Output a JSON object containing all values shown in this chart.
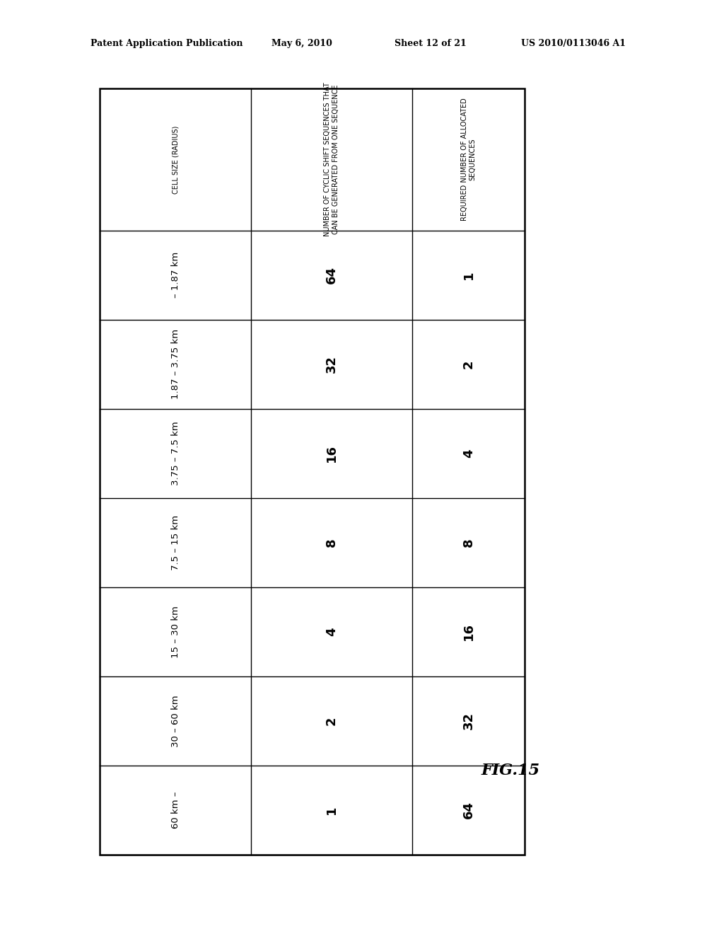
{
  "header_row": [
    "CELL SIZE (RADIUS)",
    "NUMBER OF CYCLIC SHIFT SEQUENCES THAT\nCAN BE GENERATED FROM ONE SEQUENCE",
    "REQUIRED NUMBER OF ALLOCATED\nSEQUENCES"
  ],
  "data_rows": [
    [
      "– 1.87 km",
      "64",
      "1"
    ],
    [
      "1.87 – 3.75 km",
      "32",
      "2"
    ],
    [
      "3.75 – 7.5 km",
      "16",
      "4"
    ],
    [
      "7.5 – 15 km",
      "8",
      "8"
    ],
    [
      "15 – 30 km",
      "4",
      "16"
    ],
    [
      "30 – 60 km",
      "2",
      "32"
    ],
    [
      "60 km –",
      "1",
      "64"
    ]
  ],
  "header_line1": "Patent Application Publication",
  "header_line2": "May 6, 2010",
  "header_line3": "Sheet 12 of 21",
  "header_line4": "US 2010/0113046 A1",
  "fig_label": "FIG.15",
  "bg_color": "#ffffff",
  "text_color": "#000000",
  "table_border_color": "#000000",
  "font_size_header_col": 7.0,
  "font_size_data_col0": 9.5,
  "font_size_data_nums": 13,
  "font_size_page_header": 9,
  "font_size_fig_label": 16
}
